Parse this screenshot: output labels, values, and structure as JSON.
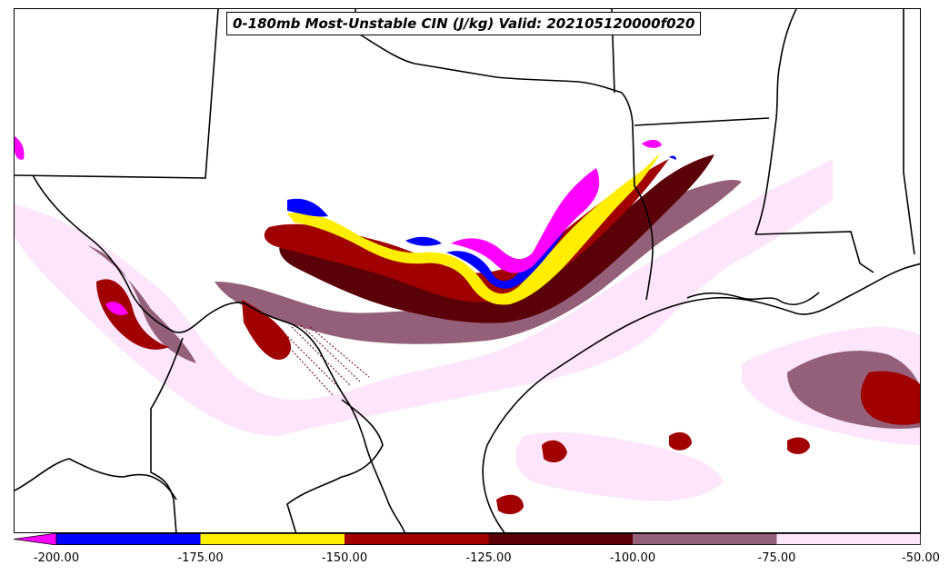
{
  "title": "0-180mb Most-Unstable CIN (J/kg) Valid: 202105120000f020",
  "colorbar": {
    "levels": [
      -200,
      -175,
      -150,
      -125,
      -100,
      -75,
      -50
    ],
    "tick_labels": [
      "-200.00",
      "-175.00",
      "-150.00",
      "-125.00",
      "-100.00",
      "-75.00",
      "-50.00"
    ],
    "colors": [
      "#ff00ff",
      "#0000ff",
      "#ffee00",
      "#a00000",
      "#5a0008",
      "#946079",
      "#fde6fb"
    ],
    "extend": "min"
  }
}
